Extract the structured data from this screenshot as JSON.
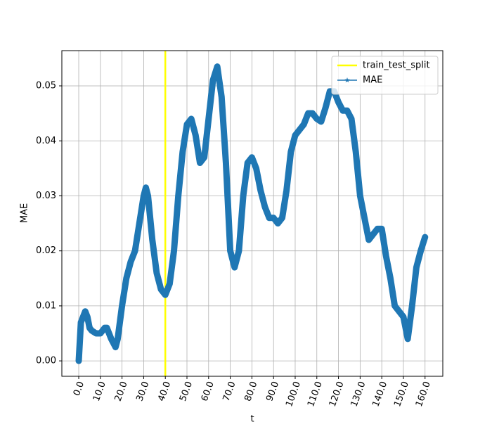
{
  "chart_data": {
    "type": "line",
    "x_label": "t",
    "y_label": "MAE",
    "x": [
      0,
      1,
      2,
      3,
      4,
      5,
      6,
      8,
      10,
      12,
      13,
      15,
      17,
      18,
      20,
      22,
      24,
      26,
      28,
      30,
      31,
      32,
      34,
      36,
      38,
      40,
      42,
      44,
      46,
      48,
      50,
      52,
      54,
      56,
      58,
      60,
      62,
      64,
      66,
      68,
      70,
      72,
      74,
      76,
      78,
      80,
      82,
      84,
      86,
      88,
      90,
      92,
      94,
      96,
      98,
      100,
      102,
      104,
      106,
      108,
      110,
      112,
      114,
      116,
      118,
      120,
      122,
      124,
      126,
      128,
      130,
      132,
      134,
      136,
      138,
      140,
      142,
      144,
      146,
      148,
      150,
      152,
      154,
      156,
      158,
      160
    ],
    "series": [
      {
        "name": "MAE",
        "color": "#1f77b4",
        "marker": "star",
        "values": [
          0.0,
          0.007,
          0.008,
          0.009,
          0.008,
          0.006,
          0.0055,
          0.005,
          0.005,
          0.006,
          0.006,
          0.004,
          0.0025,
          0.004,
          0.01,
          0.015,
          0.018,
          0.02,
          0.025,
          0.03,
          0.0315,
          0.03,
          0.022,
          0.016,
          0.013,
          0.012,
          0.014,
          0.02,
          0.03,
          0.038,
          0.043,
          0.044,
          0.041,
          0.036,
          0.037,
          0.044,
          0.051,
          0.0535,
          0.048,
          0.036,
          0.02,
          0.017,
          0.02,
          0.03,
          0.036,
          0.037,
          0.035,
          0.031,
          0.028,
          0.026,
          0.026,
          0.025,
          0.026,
          0.031,
          0.038,
          0.041,
          0.042,
          0.043,
          0.045,
          0.045,
          0.044,
          0.0435,
          0.046,
          0.049,
          0.049,
          0.047,
          0.0455,
          0.0455,
          0.044,
          0.038,
          0.03,
          0.026,
          0.022,
          0.023,
          0.024,
          0.024,
          0.019,
          0.015,
          0.01,
          0.009,
          0.008,
          0.004,
          0.01,
          0.017,
          0.02,
          0.0225
        ]
      }
    ],
    "vlines": [
      {
        "name": "train_test_split",
        "x": 40,
        "color": "#ffff00"
      }
    ],
    "xlim": [
      -7.8,
      168.2
    ],
    "ylim": [
      -0.0028,
      0.0564
    ],
    "xticks": [
      {
        "value": 0,
        "label": "0.0"
      },
      {
        "value": 10,
        "label": "10.0"
      },
      {
        "value": 20,
        "label": "20.0"
      },
      {
        "value": 30,
        "label": "30.0"
      },
      {
        "value": 40,
        "label": "40.0"
      },
      {
        "value": 50,
        "label": "50.0"
      },
      {
        "value": 60,
        "label": "60.0"
      },
      {
        "value": 70,
        "label": "70.0"
      },
      {
        "value": 80,
        "label": "80.0"
      },
      {
        "value": 90,
        "label": "90.0"
      },
      {
        "value": 100,
        "label": "100.0"
      },
      {
        "value": 110,
        "label": "110.0"
      },
      {
        "value": 120,
        "label": "120.0"
      },
      {
        "value": 130,
        "label": "130.0"
      },
      {
        "value": 140,
        "label": "140.0"
      },
      {
        "value": 150,
        "label": "150.0"
      },
      {
        "value": 160,
        "label": "160.0"
      }
    ],
    "yticks": [
      {
        "value": 0,
        "label": "0.00"
      },
      {
        "value": 0.01,
        "label": "0.01"
      },
      {
        "value": 0.02,
        "label": "0.02"
      },
      {
        "value": 0.03,
        "label": "0.03"
      },
      {
        "value": 0.04,
        "label": "0.04"
      },
      {
        "value": 0.05,
        "label": "0.05"
      }
    ],
    "grid": true,
    "legend": "upper right"
  }
}
